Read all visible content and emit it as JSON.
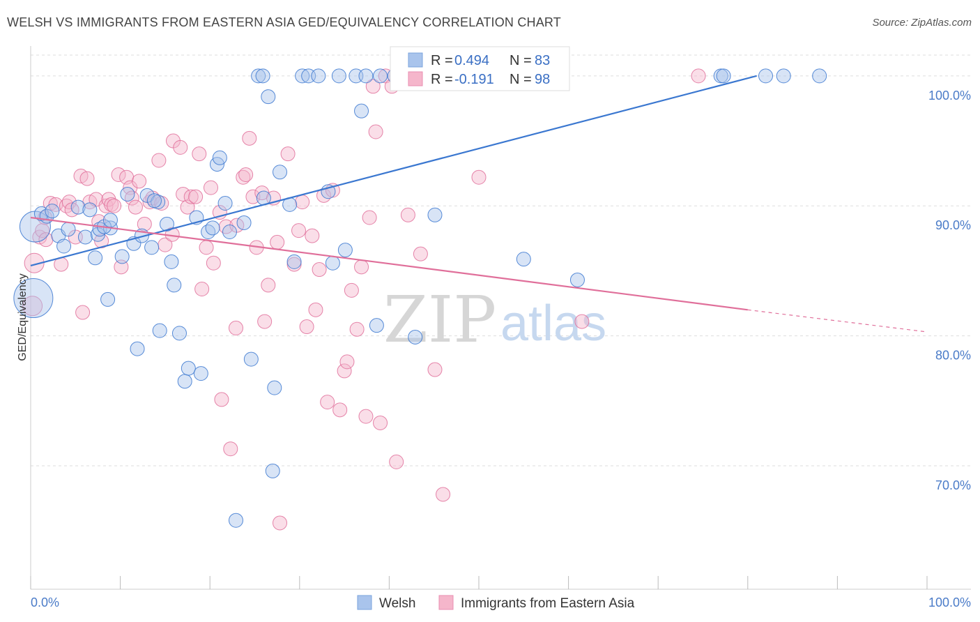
{
  "title": "WELSH VS IMMIGRANTS FROM EASTERN ASIA GED/EQUIVALENCY CORRELATION CHART",
  "source": "Source: ZipAtlas.com",
  "watermark": {
    "part1": "ZIP",
    "part2": "atlas"
  },
  "colors": {
    "welsh": "#3a77d0",
    "welsh_fill": "#a9c4ec",
    "asia": "#e06f9a",
    "asia_fill": "#f5b6cb",
    "grid": "#dddddd"
  },
  "chart_data": {
    "type": "scatter",
    "xlabel": "",
    "ylabel": "GED/Equivalency",
    "xlim": [
      0,
      100
    ],
    "ylim": [
      60.5,
      102.3
    ],
    "x_tick_labels": {
      "min": "0.0%",
      "max": "100.0%"
    },
    "y_ticks": [
      {
        "value": 100,
        "label": "100.0%"
      },
      {
        "value": 90,
        "label": "90.0%"
      },
      {
        "value": 80,
        "label": "80.0%"
      },
      {
        "value": 70,
        "label": "70.0%"
      }
    ],
    "legend": {
      "placement": "top-center",
      "rows": [
        {
          "r_label": "R = ",
          "r_value": "0.494",
          "n_label": "N = ",
          "n_value": "83"
        },
        {
          "r_label": "R = ",
          "r_value": "-0.191",
          "n_label": "N = ",
          "n_value": "98"
        }
      ]
    },
    "series": [
      {
        "name": "Welsh",
        "trend": {
          "x0": 0,
          "y0": 85.4,
          "x1": 81,
          "y1": 100
        },
        "points": [
          [
            0.5,
            88.4,
            22
          ],
          [
            0.3,
            82.9,
            28
          ],
          [
            1.2,
            89.4,
            10
          ],
          [
            1.8,
            89.2,
            10
          ],
          [
            2.4,
            89.6,
            10
          ],
          [
            3.1,
            87.7,
            10
          ],
          [
            4.2,
            88.2,
            10
          ],
          [
            3.7,
            86.9,
            10
          ],
          [
            5.3,
            89.9,
            10
          ],
          [
            6.1,
            87.6,
            10
          ],
          [
            6.6,
            89.7,
            10
          ],
          [
            7.2,
            86.0,
            10
          ],
          [
            7.5,
            87.8,
            10
          ],
          [
            7.7,
            88.2,
            10
          ],
          [
            8.9,
            88.3,
            10
          ],
          [
            8.2,
            88.4,
            10
          ],
          [
            8.6,
            82.8,
            10
          ],
          [
            8.9,
            88.9,
            10
          ],
          [
            10.2,
            86.1,
            10
          ],
          [
            10.8,
            90.9,
            10
          ],
          [
            11.5,
            87.1,
            10
          ],
          [
            11.9,
            79.0,
            10
          ],
          [
            12.4,
            87.7,
            10
          ],
          [
            13.0,
            90.8,
            10
          ],
          [
            13.5,
            86.8,
            10
          ],
          [
            14.2,
            90.3,
            10
          ],
          [
            13.8,
            90.4,
            10
          ],
          [
            14.4,
            80.4,
            10
          ],
          [
            15.2,
            88.6,
            10
          ],
          [
            15.7,
            85.7,
            10
          ],
          [
            16.0,
            83.9,
            10
          ],
          [
            16.6,
            80.2,
            10
          ],
          [
            17.2,
            76.5,
            10
          ],
          [
            17.6,
            77.5,
            10
          ],
          [
            18.5,
            89.1,
            10
          ],
          [
            19.0,
            77.1,
            10
          ],
          [
            19.8,
            88.0,
            10
          ],
          [
            20.3,
            88.3,
            10
          ],
          [
            20.8,
            93.2,
            10
          ],
          [
            21.1,
            93.7,
            10
          ],
          [
            21.7,
            90.2,
            10
          ],
          [
            22.2,
            88.0,
            10
          ],
          [
            22.9,
            65.8,
            10
          ],
          [
            23.8,
            88.7,
            10
          ],
          [
            24.6,
            78.2,
            10
          ],
          [
            25.4,
            100,
            10
          ],
          [
            25.9,
            100,
            10
          ],
          [
            26.0,
            90.6,
            10
          ],
          [
            26.5,
            98.4,
            10
          ],
          [
            27.0,
            69.6,
            10
          ],
          [
            27.2,
            76.0,
            10
          ],
          [
            27.8,
            92.6,
            10
          ],
          [
            28.9,
            90.1,
            10
          ],
          [
            29.4,
            85.7,
            10
          ],
          [
            30.3,
            100,
            10
          ],
          [
            31.0,
            100,
            10
          ],
          [
            32.1,
            100,
            10
          ],
          [
            33.2,
            91.1,
            10
          ],
          [
            33.7,
            85.6,
            10
          ],
          [
            34.4,
            100,
            10
          ],
          [
            35.1,
            86.6,
            10
          ],
          [
            36.3,
            100,
            10
          ],
          [
            36.9,
            97.3,
            10
          ],
          [
            37.4,
            100,
            10
          ],
          [
            38.6,
            80.8,
            10
          ],
          [
            39.0,
            100,
            10
          ],
          [
            40.6,
            100,
            10
          ],
          [
            41.0,
            100,
            10
          ],
          [
            41.7,
            100,
            10
          ],
          [
            42.5,
            100,
            10
          ],
          [
            42.9,
            79.9,
            10
          ],
          [
            44.1,
            100,
            10
          ],
          [
            45.5,
            100,
            10
          ],
          [
            45.1,
            89.3,
            10
          ],
          [
            47.8,
            100,
            10
          ],
          [
            51.6,
            100,
            10
          ],
          [
            55.0,
            85.9,
            10
          ],
          [
            61.0,
            84.3,
            10
          ],
          [
            77.0,
            100,
            10
          ],
          [
            77.3,
            100,
            10
          ],
          [
            82.0,
            100,
            10
          ],
          [
            84.0,
            100,
            10
          ],
          [
            88.0,
            100,
            10
          ]
        ]
      },
      {
        "name": "Immigrants from Eastern Asia",
        "trend": {
          "x0": 0,
          "y0": 89.1,
          "x1": 80,
          "y1": 82.0,
          "dash_to_x": 100,
          "dash_to_y": 80.3
        },
        "points": [
          [
            0.4,
            85.6,
            14
          ],
          [
            0.2,
            82.3,
            14
          ],
          [
            1.0,
            87.6,
            10
          ],
          [
            1.3,
            88.1,
            10
          ],
          [
            1.6,
            89.1,
            10
          ],
          [
            1.7,
            87.4,
            10
          ],
          [
            2.2,
            90.2,
            10
          ],
          [
            2.8,
            90.1,
            10
          ],
          [
            3.4,
            85.5,
            10
          ],
          [
            4.0,
            90.0,
            10
          ],
          [
            4.3,
            90.3,
            10
          ],
          [
            4.6,
            89.7,
            10
          ],
          [
            5.0,
            87.6,
            10
          ],
          [
            5.6,
            92.3,
            10
          ],
          [
            5.8,
            81.8,
            10
          ],
          [
            6.3,
            92.1,
            10
          ],
          [
            6.6,
            90.3,
            10
          ],
          [
            7.3,
            90.5,
            10
          ],
          [
            7.6,
            88.8,
            10
          ],
          [
            7.9,
            87.3,
            10
          ],
          [
            8.4,
            90.0,
            10
          ],
          [
            8.7,
            90.5,
            10
          ],
          [
            9.0,
            90.1,
            10
          ],
          [
            9.3,
            90.0,
            10
          ],
          [
            9.8,
            92.4,
            10
          ],
          [
            10.1,
            85.3,
            10
          ],
          [
            10.7,
            92.2,
            10
          ],
          [
            11.1,
            91.4,
            10
          ],
          [
            11.3,
            90.6,
            10
          ],
          [
            11.7,
            89.9,
            10
          ],
          [
            12.1,
            91.9,
            10
          ],
          [
            12.7,
            88.6,
            10
          ],
          [
            13.3,
            90.3,
            10
          ],
          [
            13.6,
            90.6,
            10
          ],
          [
            14.3,
            93.5,
            10
          ],
          [
            14.6,
            90.2,
            10
          ],
          [
            15.0,
            87.0,
            10
          ],
          [
            15.8,
            87.8,
            10
          ],
          [
            15.9,
            95.0,
            10
          ],
          [
            16.7,
            94.5,
            10
          ],
          [
            17.0,
            90.9,
            10
          ],
          [
            17.5,
            89.9,
            10
          ],
          [
            17.9,
            90.7,
            10
          ],
          [
            18.4,
            90.7,
            10
          ],
          [
            18.8,
            94.0,
            10
          ],
          [
            19.1,
            83.6,
            10
          ],
          [
            19.6,
            86.8,
            10
          ],
          [
            20.1,
            91.4,
            10
          ],
          [
            20.4,
            85.6,
            10
          ],
          [
            21.1,
            89.5,
            10
          ],
          [
            21.3,
            75.1,
            10
          ],
          [
            21.8,
            88.4,
            10
          ],
          [
            22.3,
            71.3,
            10
          ],
          [
            22.9,
            80.6,
            10
          ],
          [
            23.0,
            88.5,
            10
          ],
          [
            23.7,
            92.2,
            10
          ],
          [
            24.0,
            92.4,
            10
          ],
          [
            24.4,
            95.2,
            10
          ],
          [
            24.8,
            90.7,
            10
          ],
          [
            25.2,
            86.8,
            10
          ],
          [
            25.8,
            91.0,
            10
          ],
          [
            26.1,
            81.1,
            10
          ],
          [
            26.5,
            83.9,
            10
          ],
          [
            27.1,
            90.6,
            10
          ],
          [
            27.5,
            87.2,
            10
          ],
          [
            27.8,
            65.6,
            10
          ],
          [
            28.7,
            94.0,
            10
          ],
          [
            29.4,
            85.5,
            10
          ],
          [
            29.9,
            88.1,
            10
          ],
          [
            30.3,
            90.3,
            10
          ],
          [
            30.8,
            80.7,
            10
          ],
          [
            31.4,
            87.7,
            10
          ],
          [
            31.8,
            82.0,
            10
          ],
          [
            32.2,
            85.1,
            10
          ],
          [
            32.7,
            90.8,
            10
          ],
          [
            33.1,
            74.9,
            10
          ],
          [
            33.7,
            91.2,
            10
          ],
          [
            34.5,
            74.3,
            10
          ],
          [
            35.0,
            77.3,
            10
          ],
          [
            35.3,
            78.0,
            10
          ],
          [
            35.8,
            83.5,
            10
          ],
          [
            36.4,
            80.5,
            10
          ],
          [
            36.9,
            85.3,
            10
          ],
          [
            37.4,
            73.8,
            10
          ],
          [
            37.8,
            89.1,
            10
          ],
          [
            38.2,
            99.2,
            10
          ],
          [
            38.5,
            95.7,
            10
          ],
          [
            39.0,
            73.3,
            10
          ],
          [
            39.6,
            100,
            10
          ],
          [
            40.3,
            99.2,
            10
          ],
          [
            40.8,
            70.3,
            10
          ],
          [
            42.1,
            89.3,
            10
          ],
          [
            43.5,
            86.3,
            10
          ],
          [
            45.1,
            77.4,
            10
          ],
          [
            46.0,
            67.8,
            10
          ],
          [
            50.0,
            92.2,
            10
          ],
          [
            61.5,
            81.1,
            10
          ],
          [
            74.5,
            100,
            10
          ]
        ]
      }
    ]
  },
  "bottom_legend": [
    {
      "label": "Welsh"
    },
    {
      "label": "Immigrants from Eastern Asia"
    }
  ]
}
